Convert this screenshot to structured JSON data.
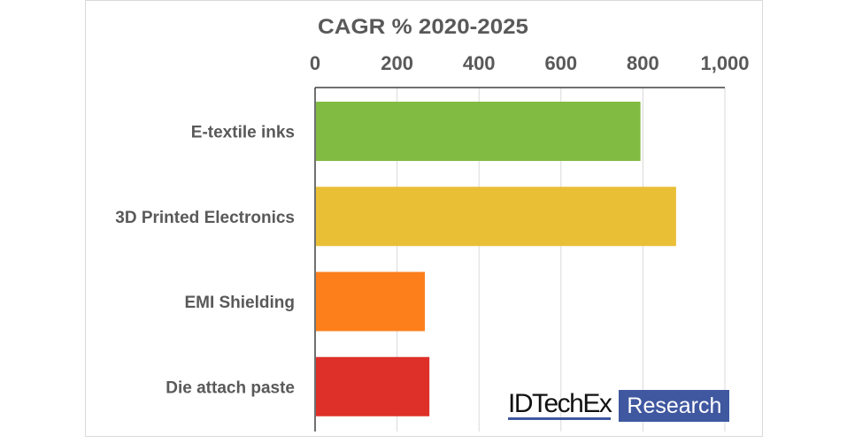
{
  "chart_data": {
    "type": "bar",
    "orientation": "horizontal",
    "title": "CAGR % 2020-2025",
    "categories": [
      "E-textile inks",
      "3D Printed Electronics",
      "EMI Shielding",
      "Die attach paste"
    ],
    "values": [
      794,
      881,
      268,
      279
    ],
    "colors": [
      "#82bb41",
      "#e9bf36",
      "#fd7f1c",
      "#de2f28"
    ],
    "xlim": [
      0,
      1000
    ],
    "xticks": [
      "0",
      "200",
      "400",
      "600",
      "800",
      "1,000"
    ],
    "xtick_values": [
      0,
      200,
      400,
      600,
      800,
      1000
    ],
    "axis_position": "top",
    "grid": true
  },
  "logo": {
    "name": "IDTechEx",
    "tag": "Research",
    "brand_color": "#3f58a0"
  }
}
